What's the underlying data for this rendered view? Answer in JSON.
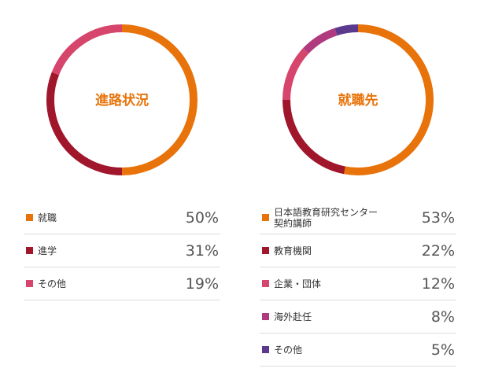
{
  "chart_data": [
    {
      "type": "donut",
      "title": "進路状況",
      "categories": [
        "就職",
        "進学",
        "その他"
      ],
      "values": [
        50,
        31,
        19
      ],
      "value_labels": [
        "50%",
        "31%",
        "19%"
      ],
      "colors": [
        "#e8730a",
        "#a0162a",
        "#d6456b"
      ]
    },
    {
      "type": "donut",
      "title": "就職先",
      "categories": [
        "日本語教育研究センター契約講師",
        "教育機関",
        "企業・団体",
        "海外赴任",
        "その他"
      ],
      "values": [
        53,
        22,
        12,
        8,
        5
      ],
      "value_labels": [
        "53%",
        "22%",
        "12%",
        "8%",
        "5%"
      ],
      "colors": [
        "#e8730a",
        "#a0162a",
        "#d6456b",
        "#b03a7e",
        "#5b3a8e"
      ]
    }
  ]
}
